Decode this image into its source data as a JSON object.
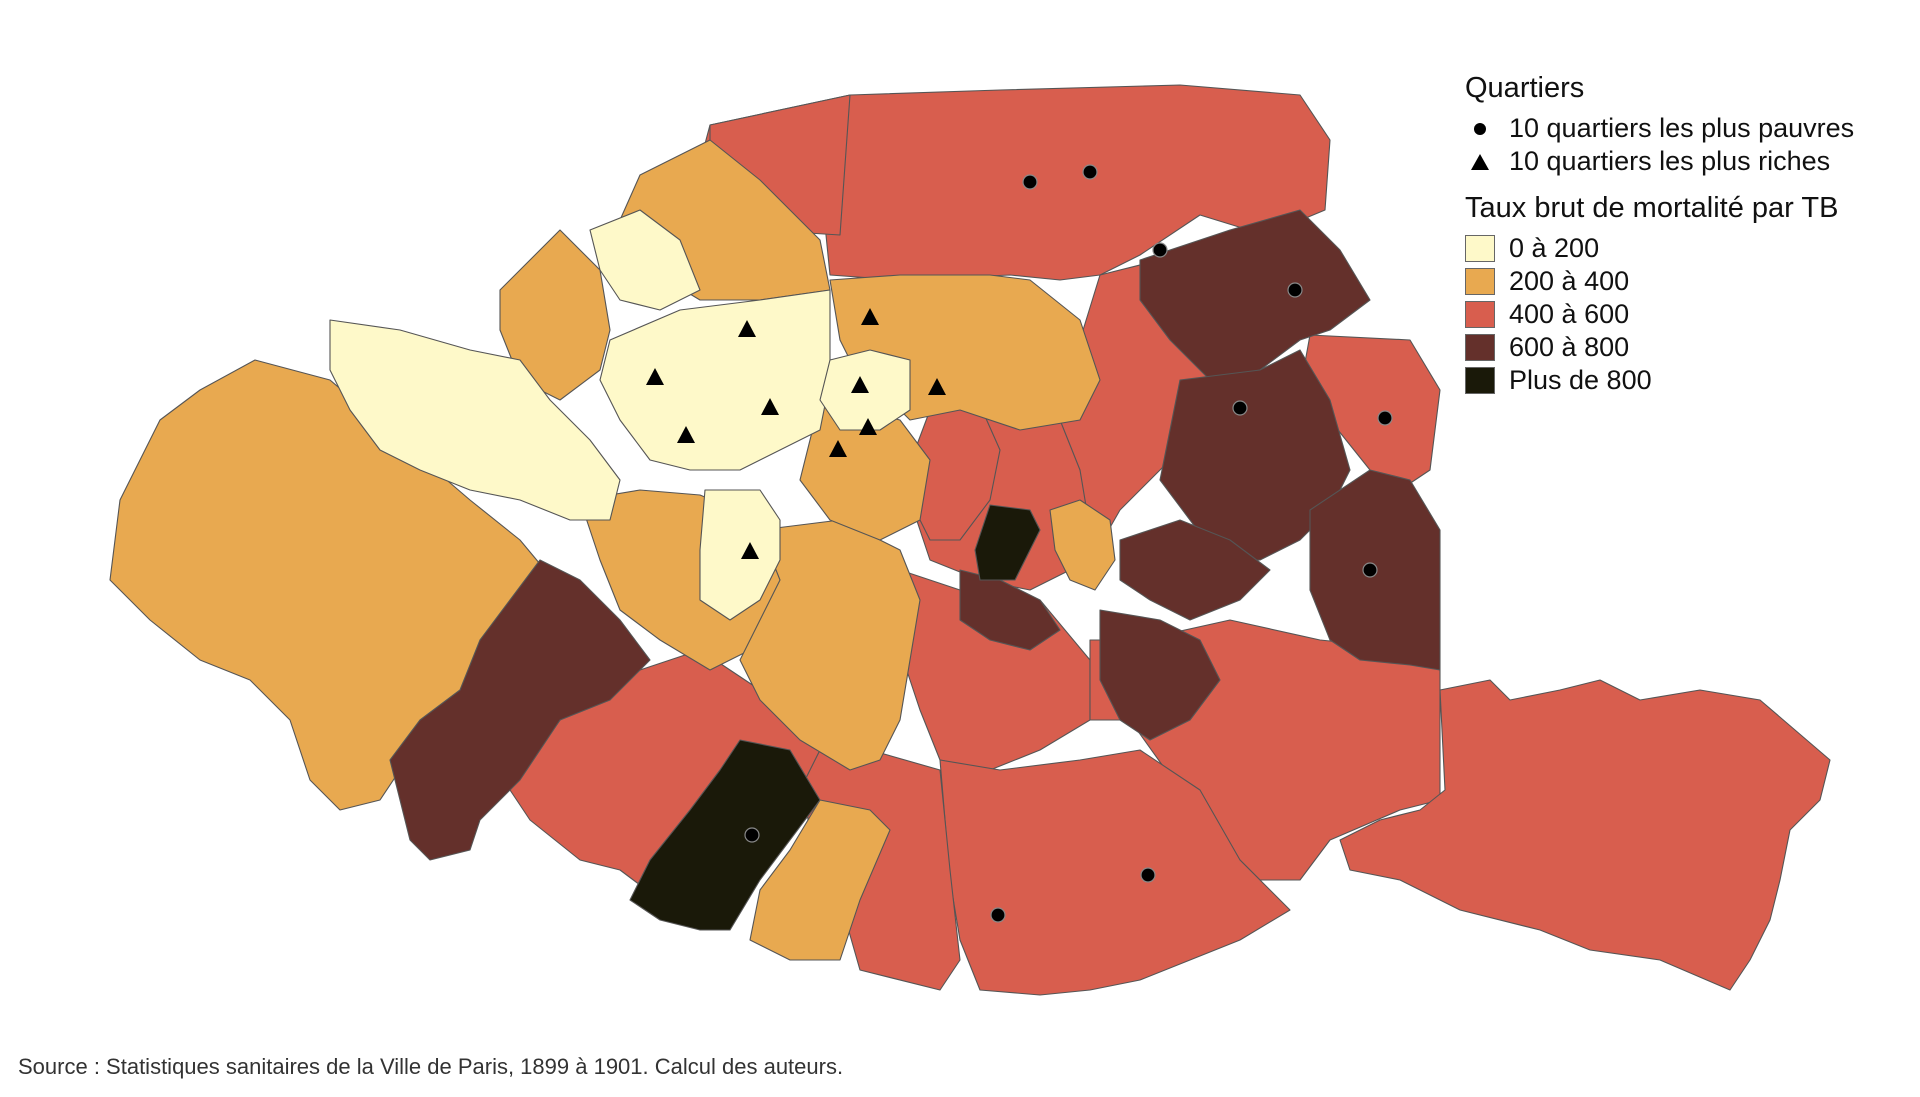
{
  "legend": {
    "markers_heading": "Quartiers",
    "poorest_label": "10 quartiers les plus pauvres",
    "richest_label": "10 quartiers les plus riches",
    "rate_heading": "Taux brut de mortalité par TB",
    "classes": [
      {
        "label": "0 à 200",
        "color": "#fef9c9"
      },
      {
        "label": "200 à 400",
        "color": "#e8a950"
      },
      {
        "label": "400 à 600",
        "color": "#d85e4e"
      },
      {
        "label": "600 à 800",
        "color": "#64302b"
      },
      {
        "label": "Plus de 800",
        "color": "#1a1909"
      }
    ]
  },
  "source": "Source : Statistiques sanitaires de la Ville de Paris, 1899 à 1901. Calcul des auteurs.",
  "marker_icons": {
    "poorest": "dot-marker",
    "richest": "triangle-marker"
  },
  "colors": {
    "border": "#555555",
    "marker": "#000000"
  }
}
